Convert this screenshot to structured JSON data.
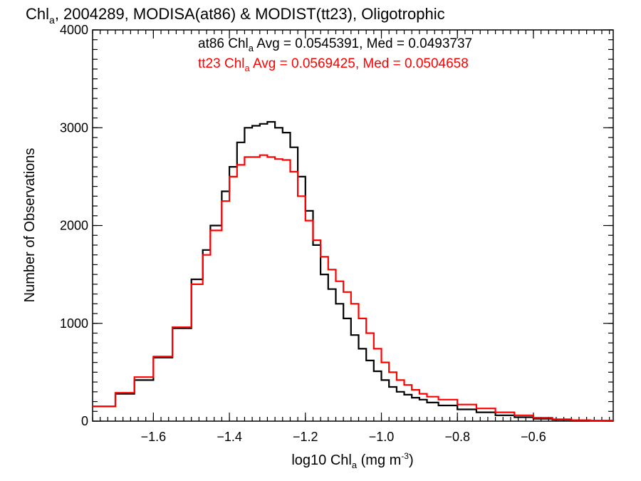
{
  "chart_data": {
    "type": "line",
    "title": {
      "pre": "Chl",
      "sub": "a",
      "post": ", 2004289, MODISA(at86) & MODIST(tt23), Oligotrophic"
    },
    "xlabel": {
      "pre": "log10 Chl",
      "sub": "a",
      "post": " (mg m",
      "sup": "-3",
      "end": ")"
    },
    "ylabel": "Number of Observations",
    "xlim": [
      -1.76,
      -0.39
    ],
    "ylim": [
      0,
      4000
    ],
    "x_ticks": [
      "-1.6",
      "-1.4",
      "-1.2",
      "-1.0",
      "-0.8",
      "-0.6"
    ],
    "y_ticks": [
      "0",
      "1000",
      "2000",
      "3000",
      "4000"
    ],
    "legend": [
      {
        "pre": "at86 Chl",
        "sub": "a",
        "post": " Avg = 0.0545391, Med = 0.0493737",
        "color": "#000000"
      },
      {
        "pre": "tt23 Chl",
        "sub": "a",
        "post": " Avg = 0.0569425, Med = 0.0504658",
        "color": "#ff0000"
      }
    ],
    "series": [
      {
        "color": "#000000",
        "style": "step",
        "x": [
          -1.76,
          -1.7,
          -1.65,
          -1.6,
          -1.55,
          -1.5,
          -1.47,
          -1.45,
          -1.42,
          -1.4,
          -1.38,
          -1.36,
          -1.34,
          -1.32,
          -1.3,
          -1.28,
          -1.26,
          -1.24,
          -1.22,
          -1.2,
          -1.18,
          -1.16,
          -1.14,
          -1.12,
          -1.1,
          -1.08,
          -1.06,
          -1.04,
          -1.02,
          -1.0,
          -0.98,
          -0.96,
          -0.94,
          -0.92,
          -0.9,
          -0.88,
          -0.85,
          -0.8,
          -0.75,
          -0.7,
          -0.65,
          -0.6,
          -0.55,
          -0.5,
          -0.45,
          -0.39
        ],
        "y": [
          150,
          280,
          420,
          650,
          950,
          1450,
          1750,
          2000,
          2350,
          2600,
          2850,
          3000,
          3020,
          3040,
          3060,
          3000,
          2950,
          2800,
          2500,
          2150,
          1800,
          1500,
          1350,
          1200,
          1050,
          880,
          740,
          620,
          510,
          420,
          350,
          300,
          270,
          240,
          220,
          190,
          160,
          120,
          90,
          60,
          40,
          25,
          15,
          8,
          5,
          3
        ]
      },
      {
        "color": "#ff0000",
        "style": "step",
        "x": [
          -1.76,
          -1.7,
          -1.65,
          -1.6,
          -1.55,
          -1.5,
          -1.47,
          -1.45,
          -1.42,
          -1.4,
          -1.38,
          -1.36,
          -1.34,
          -1.32,
          -1.3,
          -1.28,
          -1.26,
          -1.24,
          -1.22,
          -1.2,
          -1.18,
          -1.16,
          -1.14,
          -1.12,
          -1.1,
          -1.08,
          -1.06,
          -1.04,
          -1.02,
          -1.0,
          -0.98,
          -0.96,
          -0.94,
          -0.92,
          -0.9,
          -0.88,
          -0.85,
          -0.8,
          -0.75,
          -0.7,
          -0.65,
          -0.6,
          -0.55,
          -0.5,
          -0.45,
          -0.39
        ],
        "y": [
          150,
          290,
          450,
          660,
          960,
          1400,
          1700,
          1950,
          2250,
          2500,
          2620,
          2700,
          2700,
          2720,
          2700,
          2680,
          2670,
          2550,
          2300,
          2050,
          1850,
          1680,
          1550,
          1430,
          1320,
          1200,
          1050,
          900,
          740,
          600,
          500,
          420,
          370,
          320,
          280,
          250,
          220,
          170,
          130,
          90,
          60,
          35,
          20,
          10,
          6,
          4
        ]
      }
    ]
  }
}
